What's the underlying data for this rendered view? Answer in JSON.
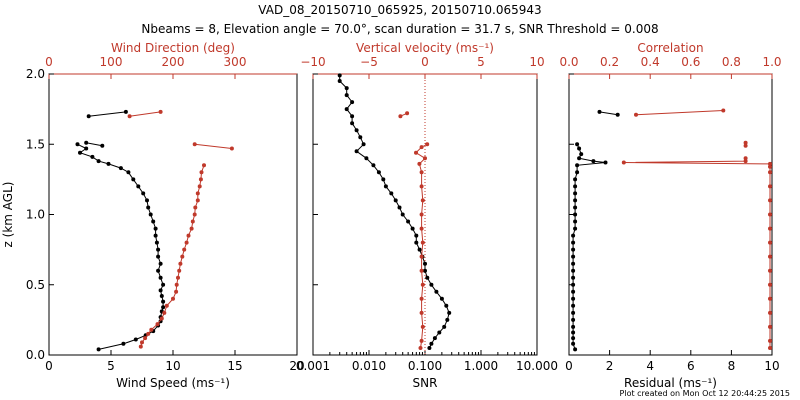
{
  "title_line1": "VAD_08_20150710_065925, 20150710.065943",
  "title_line2": "Nbeams = 8, Elevation angle = 70.0°, scan duration = 31.7 s, SNR Threshold = 0.008",
  "credit": "Plot created on Mon Oct 12 20:44:25 2015",
  "colors": {
    "black": "#000000",
    "red": "#c0392b"
  },
  "chart_data": [
    {
      "type": "line",
      "ylabel": "z (km AGL)",
      "ylim": [
        0,
        2.0
      ],
      "yticks": [
        "0.0",
        "0.5",
        "1.0",
        "1.5",
        "2.0"
      ],
      "bottom_axis": {
        "label": "Wind Speed (ms⁻¹)",
        "range": [
          0,
          20
        ],
        "ticks": [
          "0",
          "5",
          "10",
          "15",
          "20"
        ]
      },
      "top_axis": {
        "label": "Wind Direction (deg)",
        "range": [
          0,
          400
        ],
        "ticks": [
          "0",
          "100",
          "200",
          "300"
        ]
      },
      "series": [
        {
          "axis": "bottom",
          "color": "black",
          "segments": [
            {
              "z": [
                0.04,
                0.08,
                0.11,
                0.14,
                0.17,
                0.21,
                0.24,
                0.27,
                0.31,
                0.34,
                0.38,
                0.42,
                0.46,
                0.5,
                0.55,
                0.6,
                0.65,
                0.7,
                0.75,
                0.8,
                0.85,
                0.9,
                0.95,
                1.0,
                1.05,
                1.1,
                1.15,
                1.2,
                1.25,
                1.3,
                1.33,
                1.36,
                1.38,
                1.41,
                1.44,
                1.47,
                1.5
              ],
              "v": [
                4.0,
                6.0,
                7.0,
                7.8,
                8.4,
                8.8,
                9.0,
                9.0,
                9.1,
                9.2,
                9.2,
                9.1,
                9.0,
                9.2,
                9.0,
                8.8,
                9.0,
                8.8,
                8.8,
                8.7,
                8.6,
                8.6,
                8.4,
                8.2,
                8.0,
                7.9,
                7.6,
                7.2,
                6.8,
                6.4,
                5.8,
                4.8,
                4.0,
                3.5,
                2.5,
                3.0,
                2.3
              ]
            },
            {
              "z": [
                1.51,
                1.49
              ],
              "v": [
                3.0,
                4.3
              ]
            },
            {
              "z": [
                1.7,
                1.73
              ],
              "v": [
                3.2,
                6.2
              ]
            }
          ]
        },
        {
          "axis": "top",
          "color": "red",
          "segments": [
            {
              "z": [
                0.06,
                0.09,
                0.12,
                0.15,
                0.18,
                0.22,
                0.26,
                0.3,
                0.35,
                0.4,
                0.45,
                0.5,
                0.55,
                0.6,
                0.65,
                0.7,
                0.75,
                0.8,
                0.85,
                0.9,
                0.95,
                1.0,
                1.05,
                1.1,
                1.15,
                1.2,
                1.25,
                1.3,
                1.35
              ],
              "v": [
                148,
                150,
                155,
                160,
                165,
                175,
                182,
                186,
                190,
                200,
                205,
                206,
                208,
                210,
                212,
                215,
                218,
                222,
                225,
                230,
                232,
                235,
                236,
                240,
                240,
                243,
                245,
                246,
                250
              ]
            },
            {
              "z": [
                1.5,
                1.47
              ],
              "v": [
                235,
                295
              ]
            },
            {
              "z": [
                1.7,
                1.73
              ],
              "v": [
                130,
                180
              ]
            }
          ]
        }
      ]
    },
    {
      "type": "line",
      "ylim": [
        0,
        2.0
      ],
      "bottom_axis": {
        "label": "SNR",
        "scale": "log",
        "range": [
          0.001,
          10
        ],
        "ticks": [
          "0.001",
          "0.010",
          "0.100",
          "1.000",
          "10.000"
        ]
      },
      "top_axis": {
        "label": "Vertical velocity (ms⁻¹)",
        "range": [
          -10,
          10
        ],
        "ticks": [
          "−10",
          "−5",
          "0",
          "5",
          "10"
        ]
      },
      "series": [
        {
          "axis": "bottom",
          "color": "black",
          "segments": [
            {
              "z": [
                0.05,
                0.08,
                0.12,
                0.16,
                0.2,
                0.25,
                0.3,
                0.35,
                0.4,
                0.45,
                0.5,
                0.55,
                0.6,
                0.65,
                0.7,
                0.75,
                0.8,
                0.85,
                0.9,
                0.95,
                1.0,
                1.05,
                1.1,
                1.15,
                1.2,
                1.25,
                1.3,
                1.35,
                1.4,
                1.45,
                1.5,
                1.55,
                1.6,
                1.65,
                1.7,
                1.75,
                1.8,
                1.85,
                1.9,
                1.95,
                1.99
              ],
              "v": [
                0.12,
                0.13,
                0.15,
                0.18,
                0.22,
                0.25,
                0.27,
                0.24,
                0.2,
                0.16,
                0.13,
                0.11,
                0.1,
                0.1,
                0.09,
                0.08,
                0.07,
                0.07,
                0.06,
                0.05,
                0.04,
                0.035,
                0.03,
                0.025,
                0.02,
                0.018,
                0.015,
                0.012,
                0.009,
                0.006,
                0.008,
                0.007,
                0.006,
                0.005,
                0.005,
                0.004,
                0.005,
                0.004,
                0.004,
                0.003,
                0.003
              ]
            }
          ]
        },
        {
          "axis": "top",
          "color": "red",
          "segments": [
            {
              "z": [
                0.05,
                0.1,
                0.2,
                0.3,
                0.4,
                0.5,
                0.6,
                0.7,
                0.8,
                0.9,
                1.0,
                1.1,
                1.2,
                1.3,
                1.36,
                1.4,
                1.44,
                1.48,
                1.5
              ],
              "v": [
                -0.4,
                -0.3,
                -0.2,
                -0.3,
                -0.3,
                -0.2,
                -0.3,
                -0.3,
                -0.2,
                -0.3,
                -0.3,
                -0.2,
                -0.3,
                -0.3,
                -0.5,
                0.0,
                -0.8,
                -0.3,
                0.2
              ]
            },
            {
              "z": [
                1.7,
                1.72
              ],
              "v": [
                -2.2,
                -1.6
              ]
            }
          ]
        }
      ]
    },
    {
      "type": "line",
      "ylim": [
        0,
        2.0
      ],
      "bottom_axis": {
        "label": "Residual (ms⁻¹)",
        "range": [
          0,
          10
        ],
        "ticks": [
          "0",
          "2",
          "4",
          "6",
          "8",
          "10"
        ]
      },
      "top_axis": {
        "label": "Correlation",
        "range": [
          0,
          1
        ],
        "ticks": [
          "0.0",
          "0.2",
          "0.4",
          "0.6",
          "0.8",
          "1.0"
        ]
      },
      "series": [
        {
          "axis": "bottom",
          "color": "black",
          "segments": [
            {
              "z": [
                0.04,
                0.08,
                0.12,
                0.16,
                0.2,
                0.25,
                0.3,
                0.35,
                0.4,
                0.45,
                0.5,
                0.55,
                0.6,
                0.65,
                0.7,
                0.75,
                0.8,
                0.85,
                0.9,
                0.95,
                1.0,
                1.05,
                1.1,
                1.15,
                1.2,
                1.25,
                1.3,
                1.35,
                1.37,
                1.38,
                1.4,
                1.43,
                1.47,
                1.5
              ],
              "v": [
                0.3,
                0.2,
                0.2,
                0.2,
                0.2,
                0.2,
                0.2,
                0.2,
                0.2,
                0.2,
                0.2,
                0.2,
                0.2,
                0.2,
                0.2,
                0.2,
                0.2,
                0.2,
                0.3,
                0.3,
                0.3,
                0.3,
                0.3,
                0.3,
                0.3,
                0.3,
                0.4,
                0.4,
                1.8,
                1.2,
                0.5,
                0.6,
                0.5,
                0.4
              ]
            },
            {
              "z": [
                1.73,
                1.71
              ],
              "v": [
                1.5,
                2.4
              ]
            }
          ]
        },
        {
          "axis": "top",
          "color": "red",
          "segments": [
            {
              "z": [
                0.05,
                0.1,
                0.2,
                0.3,
                0.4,
                0.5,
                0.6,
                0.7,
                0.8,
                0.9,
                1.0,
                1.1,
                1.2,
                1.3,
                1.34
              ],
              "v": [
                0.99,
                0.99,
                0.99,
                0.99,
                0.99,
                0.99,
                0.99,
                0.99,
                0.99,
                0.99,
                0.99,
                0.99,
                0.99,
                0.99,
                0.99
              ]
            },
            {
              "z": [
                1.36,
                1.37,
                1.38,
                1.4
              ],
              "v": [
                0.99,
                0.27,
                0.87,
                0.87
              ]
            },
            {
              "z": [
                1.49,
                1.51
              ],
              "v": [
                0.87,
                0.87
              ]
            },
            {
              "z": [
                1.71,
                1.74
              ],
              "v": [
                0.33,
                0.76
              ]
            }
          ]
        }
      ]
    }
  ]
}
